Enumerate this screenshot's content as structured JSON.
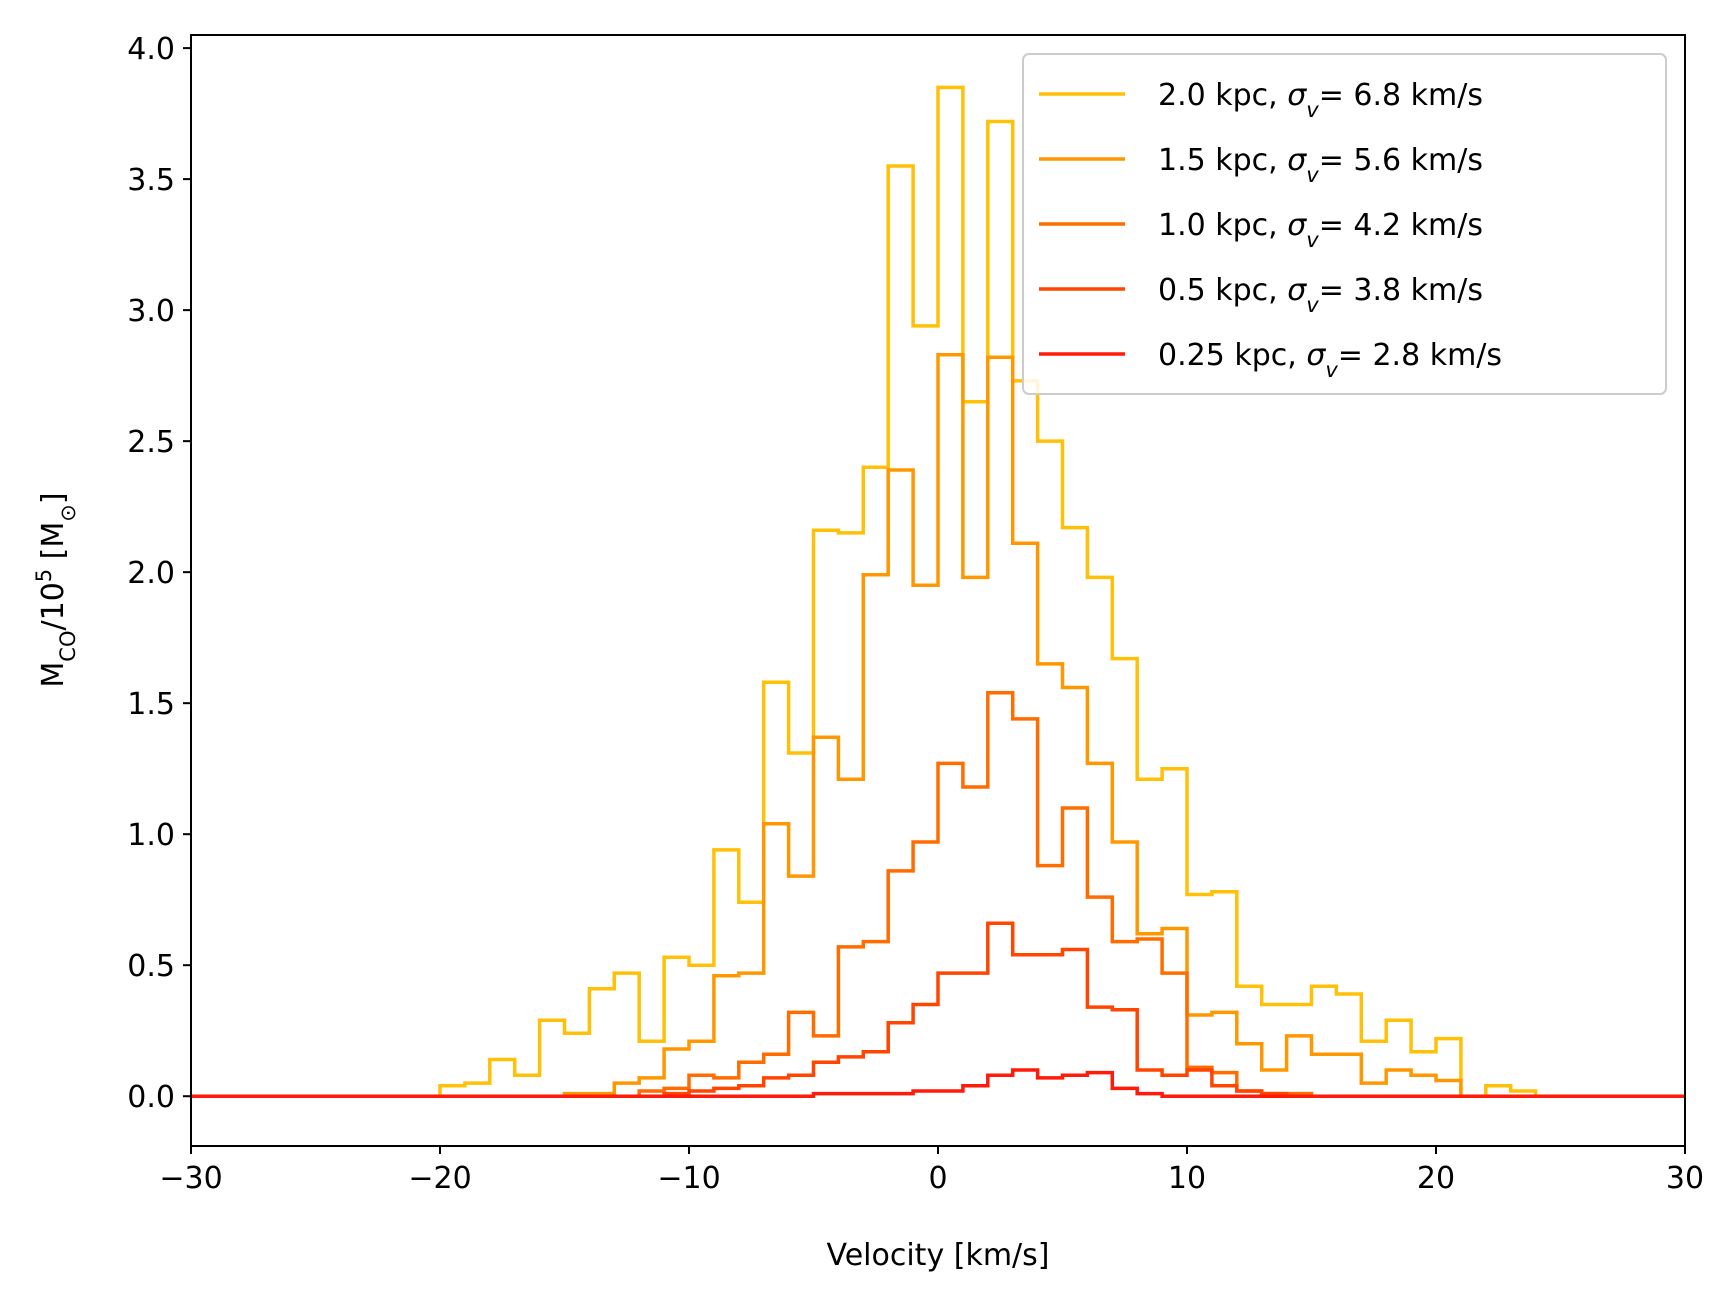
{
  "chart_data": {
    "type": "line",
    "drawstyle": "steps",
    "title": "",
    "xlabel": "Velocity [km/s]",
    "ylabel": {
      "base": "M",
      "sub": "CO",
      "middle": "/10",
      "sup": "5",
      "unit_open": " [M",
      "unit_sub": "⊙",
      "unit_close": "]"
    },
    "xlim": [
      -30,
      30
    ],
    "ylim": [
      -0.19,
      4.05
    ],
    "xticks": [
      -30,
      -20,
      -10,
      0,
      10,
      20,
      30
    ],
    "xtick_labels": [
      "−30",
      "−20",
      "−10",
      "0",
      "10",
      "20",
      "30"
    ],
    "yticks": [
      0.0,
      0.5,
      1.0,
      1.5,
      2.0,
      2.5,
      3.0,
      3.5,
      4.0
    ],
    "ytick_labels": [
      "0.0",
      "0.5",
      "1.0",
      "1.5",
      "2.0",
      "2.5",
      "3.0",
      "3.5",
      "4.0"
    ],
    "legend_position": "top-right",
    "bin_width": 1.0,
    "x_left_edges": [
      -30,
      -29,
      -28,
      -27,
      -26,
      -25,
      -24,
      -23,
      -22,
      -21,
      -20,
      -19,
      -18,
      -17,
      -16,
      -15,
      -14,
      -13,
      -12,
      -11,
      -10,
      -9,
      -8,
      -7,
      -6,
      -5,
      -4,
      -3,
      -2,
      -1,
      0,
      1,
      2,
      3,
      4,
      5,
      6,
      7,
      8,
      9,
      10,
      11,
      12,
      13,
      14,
      15,
      16,
      17,
      18,
      19,
      20,
      21,
      22,
      23,
      24,
      25,
      26,
      27,
      28,
      29
    ],
    "series": [
      {
        "name": "2.0 kpc",
        "sigma": "6.8 km/s",
        "color": "#FFC107",
        "values": [
          0,
          0,
          0,
          0,
          0,
          0,
          0,
          0,
          0,
          0,
          0.04,
          0.05,
          0.14,
          0.08,
          0.29,
          0.24,
          0.41,
          0.47,
          0.21,
          0.53,
          0.5,
          0.94,
          0.74,
          1.58,
          1.31,
          2.16,
          2.15,
          2.4,
          3.55,
          2.94,
          3.85,
          2.65,
          3.72,
          2.73,
          2.5,
          2.17,
          1.98,
          1.67,
          1.21,
          1.25,
          0.77,
          0.78,
          0.42,
          0.35,
          0.35,
          0.42,
          0.39,
          0.21,
          0.29,
          0.17,
          0.22,
          0,
          0.04,
          0.02,
          0,
          0,
          0,
          0,
          0,
          0
        ]
      },
      {
        "name": "1.5 kpc",
        "sigma": "5.6 km/s",
        "color": "#FF9800",
        "values": [
          0,
          0,
          0,
          0,
          0,
          0,
          0,
          0,
          0,
          0,
          0,
          0,
          0,
          0,
          0,
          0.01,
          0.01,
          0.05,
          0.07,
          0.18,
          0.21,
          0.46,
          0.47,
          1.04,
          0.84,
          1.37,
          1.21,
          1.99,
          2.39,
          1.95,
          2.83,
          1.98,
          2.82,
          2.11,
          1.65,
          1.56,
          1.27,
          0.97,
          0.62,
          0.64,
          0.31,
          0.32,
          0.2,
          0.1,
          0.23,
          0.16,
          0.16,
          0.05,
          0.1,
          0.08,
          0.06,
          0,
          0,
          0,
          0,
          0,
          0,
          0,
          0,
          0
        ]
      },
      {
        "name": "1.0 kpc",
        "sigma": "4.2 km/s",
        "color": "#FF6D00",
        "values": [
          0,
          0,
          0,
          0,
          0,
          0,
          0,
          0,
          0,
          0,
          0,
          0,
          0,
          0,
          0,
          0,
          0,
          0,
          0.02,
          0.03,
          0.08,
          0.07,
          0.13,
          0.16,
          0.32,
          0.23,
          0.57,
          0.59,
          0.86,
          0.97,
          1.27,
          1.18,
          1.54,
          1.44,
          0.88,
          1.1,
          0.76,
          0.59,
          0.6,
          0.47,
          0.11,
          0.09,
          0.02,
          0.01,
          0.01,
          0,
          0,
          0,
          0,
          0,
          0,
          0,
          0,
          0,
          0,
          0,
          0,
          0,
          0,
          0
        ]
      },
      {
        "name": "0.5 kpc",
        "sigma": "3.8 km/s",
        "color": "#FF4500",
        "values": [
          0,
          0,
          0,
          0,
          0,
          0,
          0,
          0,
          0,
          0,
          0,
          0,
          0,
          0,
          0,
          0,
          0,
          0,
          0,
          0.01,
          0.02,
          0.03,
          0.04,
          0.07,
          0.08,
          0.13,
          0.15,
          0.17,
          0.28,
          0.35,
          0.47,
          0.47,
          0.66,
          0.54,
          0.54,
          0.56,
          0.34,
          0.33,
          0.1,
          0.08,
          0.1,
          0.04,
          0.02,
          0.01,
          0,
          0,
          0,
          0,
          0,
          0,
          0,
          0,
          0,
          0,
          0,
          0,
          0,
          0,
          0,
          0
        ]
      },
      {
        "name": "0.25 kpc",
        "sigma": "2.8 km/s",
        "color": "#FF1A0A",
        "values": [
          0,
          0,
          0,
          0,
          0,
          0,
          0,
          0,
          0,
          0,
          0,
          0,
          0,
          0,
          0,
          0,
          0,
          0,
          0,
          0,
          0,
          0,
          0,
          0,
          0,
          0.01,
          0.01,
          0.01,
          0.01,
          0.02,
          0.02,
          0.04,
          0.08,
          0.1,
          0.07,
          0.08,
          0.09,
          0.03,
          0.01,
          0,
          0,
          0,
          0,
          0,
          0,
          0,
          0,
          0,
          0,
          0,
          0,
          0,
          0,
          0,
          0,
          0,
          0,
          0,
          0,
          0
        ]
      }
    ]
  }
}
